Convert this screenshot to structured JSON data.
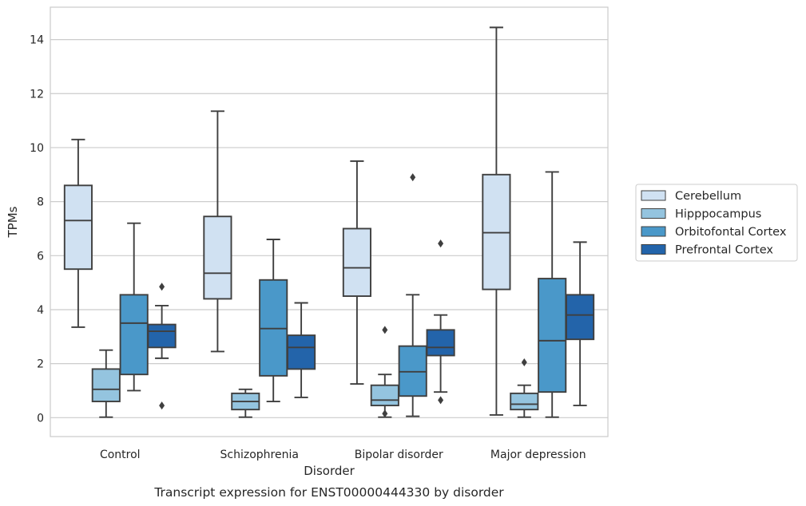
{
  "chart_data": {
    "type": "boxplot",
    "caption": "Transcript expression for ENST00000444330 by disorder",
    "xlabel": "Disorder",
    "ylabel": "TPMs",
    "ylim": [
      -0.7,
      15.2
    ],
    "yticks": [
      0,
      2,
      4,
      6,
      8,
      10,
      12,
      14
    ],
    "grid": "horizontal",
    "legend_position": "right",
    "categories": [
      "Control",
      "Schizophrenia",
      "Bipolar disorder",
      "Major depression"
    ],
    "series": [
      {
        "name": "Cerebellum",
        "color": "#d0e1f2",
        "boxes": [
          {
            "whislo": 3.35,
            "q1": 5.5,
            "med": 7.3,
            "q3": 8.6,
            "whishi": 10.3,
            "fliers": []
          },
          {
            "whislo": 2.45,
            "q1": 4.4,
            "med": 5.35,
            "q3": 7.45,
            "whishi": 11.35,
            "fliers": []
          },
          {
            "whislo": 1.25,
            "q1": 4.5,
            "med": 5.55,
            "q3": 7.0,
            "whishi": 9.5,
            "fliers": []
          },
          {
            "whislo": 0.1,
            "q1": 4.75,
            "med": 6.85,
            "q3": 9.0,
            "whishi": 14.45,
            "fliers": []
          }
        ]
      },
      {
        "name": "Hipppocampus",
        "color": "#94c4df",
        "boxes": [
          {
            "whislo": 0.02,
            "q1": 0.6,
            "med": 1.05,
            "q3": 1.8,
            "whishi": 2.5,
            "fliers": []
          },
          {
            "whislo": 0.02,
            "q1": 0.3,
            "med": 0.6,
            "q3": 0.9,
            "whishi": 1.05,
            "fliers": []
          },
          {
            "whislo": 0.02,
            "q1": 0.45,
            "med": 0.65,
            "q3": 1.2,
            "whishi": 1.6,
            "fliers": [
              0.15,
              3.25
            ]
          },
          {
            "whislo": 0.02,
            "q1": 0.3,
            "med": 0.5,
            "q3": 0.9,
            "whishi": 1.2,
            "fliers": [
              2.05
            ]
          }
        ]
      },
      {
        "name": "Orbitofontal Cortex",
        "color": "#4a98c9",
        "boxes": [
          {
            "whislo": 1.0,
            "q1": 1.6,
            "med": 3.5,
            "q3": 4.55,
            "whishi": 7.2,
            "fliers": []
          },
          {
            "whislo": 0.6,
            "q1": 1.55,
            "med": 3.3,
            "q3": 5.1,
            "whishi": 6.6,
            "fliers": []
          },
          {
            "whislo": 0.05,
            "q1": 0.8,
            "med": 1.7,
            "q3": 2.65,
            "whishi": 4.55,
            "fliers": [
              8.9
            ]
          },
          {
            "whislo": 0.02,
            "q1": 0.95,
            "med": 2.85,
            "q3": 5.15,
            "whishi": 9.1,
            "fliers": []
          }
        ]
      },
      {
        "name": "Prefrontal Cortex",
        "color": "#2364aa",
        "boxes": [
          {
            "whislo": 2.2,
            "q1": 2.6,
            "med": 3.2,
            "q3": 3.45,
            "whishi": 4.15,
            "fliers": [
              4.85,
              0.45
            ]
          },
          {
            "whislo": 0.75,
            "q1": 1.8,
            "med": 2.6,
            "q3": 3.05,
            "whishi": 4.25,
            "fliers": []
          },
          {
            "whislo": 0.95,
            "q1": 2.3,
            "med": 2.6,
            "q3": 3.25,
            "whishi": 3.8,
            "fliers": [
              6.45,
              0.65
            ]
          },
          {
            "whislo": 0.45,
            "q1": 2.9,
            "med": 3.8,
            "q3": 4.55,
            "whishi": 6.5,
            "fliers": []
          }
        ]
      }
    ]
  }
}
